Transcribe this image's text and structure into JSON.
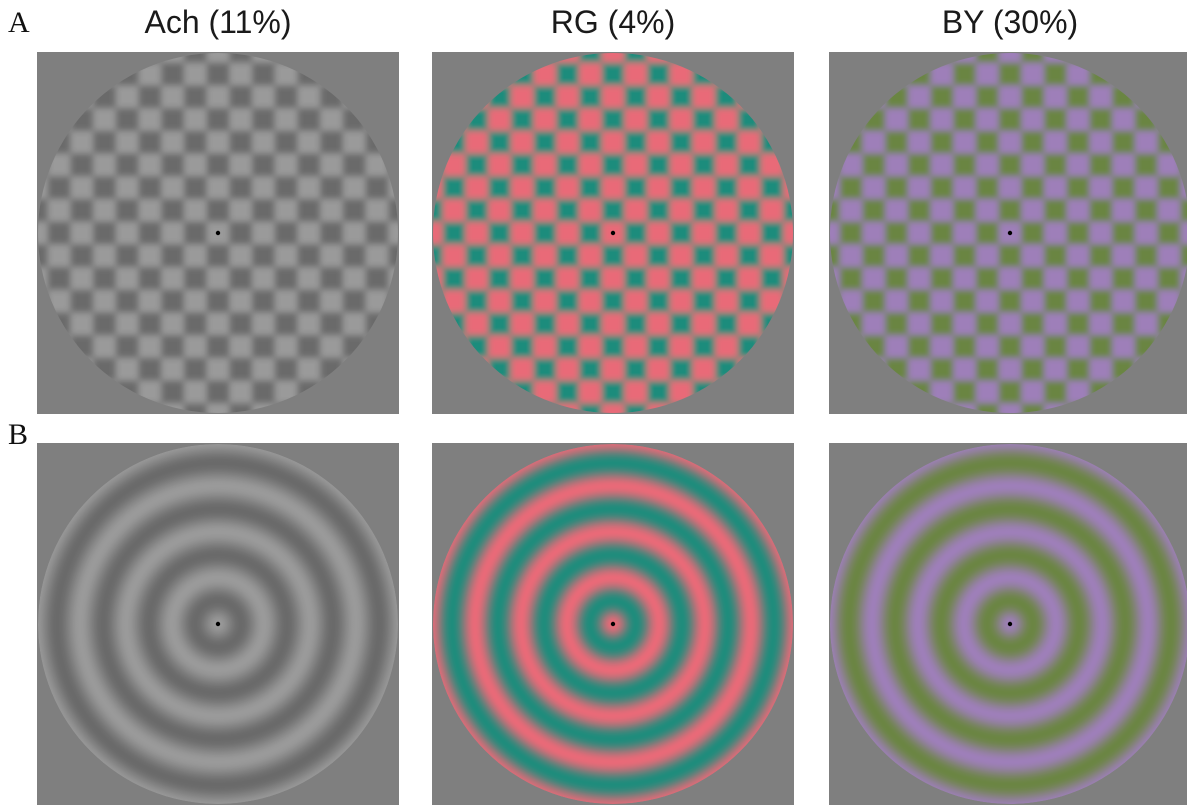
{
  "rows": [
    {
      "label": "A",
      "pattern": "checkerboard"
    },
    {
      "label": "B",
      "pattern": "concentric-rings"
    }
  ],
  "columns": [
    {
      "title": "Ach (11%)",
      "color_a": "#9a9a9a",
      "color_b": "#6a6a6a"
    },
    {
      "title": "RG (4%)",
      "color_a": "#e96a78",
      "color_b": "#1f8c7c"
    },
    {
      "title": "BY (30%)",
      "color_a": "#9e7fb9",
      "color_b": "#6b8543"
    }
  ],
  "background_color": "#7f7f7f",
  "fixation_color": "#000000"
}
